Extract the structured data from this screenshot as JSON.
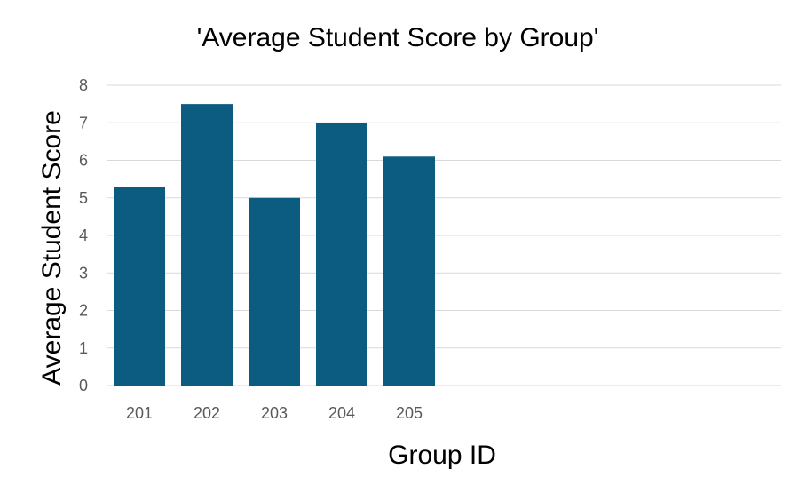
{
  "chart_data": {
    "type": "bar",
    "title": "'Average Student Score by Group'",
    "xlabel": "Group ID",
    "ylabel": "Average Student Score",
    "categories": [
      "201",
      "202",
      "203",
      "204",
      "205"
    ],
    "values": [
      5.3,
      7.5,
      5.0,
      7.0,
      6.1
    ],
    "ylim": [
      0,
      8
    ],
    "yticks": [
      "0",
      "1",
      "2",
      "3",
      "4",
      "5",
      "6",
      "7",
      "8"
    ],
    "grid": true,
    "legend": "none",
    "bar_color": "#0b5c80"
  }
}
